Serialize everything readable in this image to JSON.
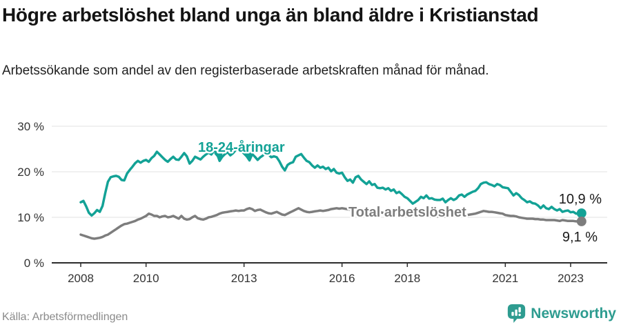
{
  "footer": {
    "source": "Källa: Arbetsförmedlingen",
    "brand": "Newsworthy"
  },
  "colors": {
    "youth_line": "#13a296",
    "total_line": "#7d7d7d",
    "brand_teal": "#2e9c90",
    "gridline": "#e0e0e0",
    "axis": "#2b2b2b"
  },
  "chart_data": {
    "type": "line",
    "title": "Högre arbetslöshet bland unga än bland äldre i Kristianstad",
    "subtitle": "Arbetssökande som andel av den registerbaserade arbetskraften månad för månad.",
    "frequency": "monthly",
    "x_start": "2008-01",
    "x_end": "2023-05",
    "x_ticks": [
      2008,
      2010,
      2013,
      2016,
      2018,
      2021,
      2023
    ],
    "y_ticks": [
      {
        "value": 0,
        "label": "0 %"
      },
      {
        "value": 10,
        "label": "10 %"
      },
      {
        "value": 20,
        "label": "20 %"
      },
      {
        "value": 30,
        "label": "30 %"
      }
    ],
    "ylim": [
      0,
      30
    ],
    "grid": true,
    "legend_position": "inline-labels",
    "series": [
      {
        "name": "18-24-åringar",
        "color": "#13a296",
        "end_label": "10,9 %",
        "end_value": 10.9,
        "values": [
          13.3,
          13.6,
          12.4,
          11.0,
          10.4,
          10.9,
          11.6,
          11.2,
          12.5,
          15.3,
          17.8,
          18.8,
          19.0,
          19.1,
          18.9,
          18.2,
          18.1,
          19.6,
          20.4,
          21.1,
          21.9,
          22.4,
          22.0,
          22.4,
          22.6,
          22.2,
          23.0,
          23.5,
          24.4,
          23.8,
          23.2,
          22.6,
          22.2,
          22.8,
          23.3,
          22.7,
          22.6,
          23.3,
          24.1,
          23.4,
          21.8,
          22.4,
          23.3,
          23.0,
          22.7,
          23.3,
          23.8,
          24.2,
          23.8,
          24.6,
          24.1,
          22.4,
          23.3,
          23.9,
          24.3,
          23.6,
          24.1,
          24.8,
          25.2,
          24.6,
          24.0,
          23.4,
          22.5,
          23.9,
          23.3,
          22.6,
          23.2,
          23.6,
          24.2,
          23.8,
          23.2,
          23.4,
          23.2,
          22.3,
          21.1,
          20.3,
          21.5,
          21.9,
          22.1,
          23.3,
          23.6,
          23.9,
          23.1,
          22.4,
          22.1,
          21.4,
          20.9,
          21.4,
          20.9,
          21.1,
          20.6,
          20.9,
          20.1,
          20.6,
          19.8,
          19.6,
          19.8,
          18.8,
          18.0,
          18.3,
          17.6,
          18.8,
          19.1,
          18.3,
          17.8,
          17.3,
          17.9,
          17.1,
          17.3,
          16.5,
          16.4,
          16.5,
          16.1,
          16.4,
          15.8,
          16.1,
          15.3,
          15.6,
          15.1,
          14.5,
          14.2,
          13.6,
          13.0,
          13.4,
          13.8,
          14.5,
          14.2,
          14.8,
          14.1,
          14.2,
          13.9,
          13.8,
          13.8,
          14.1,
          13.3,
          13.8,
          14.2,
          13.8,
          14.1,
          14.8,
          15.0,
          14.5,
          15.0,
          15.3,
          15.6,
          15.8,
          16.4,
          17.3,
          17.6,
          17.7,
          17.3,
          17.1,
          16.8,
          17.3,
          17.1,
          16.6,
          16.5,
          16.4,
          15.6,
          14.8,
          15.3,
          14.9,
          14.2,
          13.8,
          13.3,
          13.5,
          13.1,
          13.0,
          12.6,
          12.0,
          12.6,
          12.0,
          11.8,
          12.3,
          11.8,
          11.5,
          11.8,
          11.2,
          11.4,
          11.5,
          11.1,
          11.2,
          10.8,
          10.9,
          10.9
        ]
      },
      {
        "name": "Total arbetslöshet",
        "color": "#7d7d7d",
        "end_label": "9,1 %",
        "end_value": 9.1,
        "values": [
          6.2,
          6.0,
          5.8,
          5.6,
          5.4,
          5.3,
          5.4,
          5.5,
          5.7,
          6.0,
          6.2,
          6.6,
          7.0,
          7.4,
          7.8,
          8.2,
          8.5,
          8.6,
          8.8,
          9.0,
          9.2,
          9.5,
          9.7,
          10.0,
          10.3,
          10.8,
          10.6,
          10.3,
          10.3,
          10.0,
          10.2,
          10.3,
          10.0,
          10.1,
          10.3,
          10.0,
          9.7,
          10.3,
          9.7,
          9.5,
          9.6,
          10.0,
          10.3,
          9.8,
          9.6,
          9.5,
          9.7,
          10.0,
          10.1,
          10.3,
          10.5,
          10.8,
          11.0,
          11.1,
          11.2,
          11.3,
          11.4,
          11.5,
          11.4,
          11.5,
          11.5,
          11.8,
          12.0,
          11.8,
          11.4,
          11.6,
          11.7,
          11.4,
          11.1,
          10.9,
          10.8,
          11.0,
          11.2,
          10.9,
          10.6,
          10.5,
          10.8,
          11.1,
          11.4,
          11.7,
          12.0,
          11.7,
          11.4,
          11.2,
          11.1,
          11.2,
          11.3,
          11.4,
          11.5,
          11.4,
          11.5,
          11.6,
          11.8,
          11.9,
          12.0,
          11.9,
          12.0,
          11.9,
          11.8,
          11.7,
          11.6,
          11.6,
          11.5,
          11.5,
          11.4,
          11.3,
          11.3,
          11.2,
          11.2,
          11.1,
          11.1,
          11.0,
          11.0,
          10.9,
          10.9,
          10.8,
          10.8,
          10.7,
          10.7,
          10.6,
          10.6,
          10.5,
          10.5,
          10.4,
          10.4,
          10.3,
          10.3,
          10.3,
          10.2,
          10.2,
          10.2,
          10.2,
          10.2,
          10.2,
          10.1,
          10.1,
          10.2,
          10.2,
          10.3,
          10.3,
          10.4,
          10.4,
          10.5,
          10.6,
          10.7,
          10.8,
          11.0,
          11.2,
          11.4,
          11.3,
          11.2,
          11.2,
          11.1,
          11.0,
          10.9,
          10.8,
          10.5,
          10.4,
          10.3,
          10.3,
          10.2,
          10.0,
          9.9,
          9.8,
          9.7,
          9.7,
          9.7,
          9.6,
          9.6,
          9.5,
          9.5,
          9.4,
          9.4,
          9.4,
          9.4,
          9.3,
          9.2,
          9.4,
          9.3,
          9.2,
          9.2,
          9.2,
          9.1,
          9.1,
          9.1
        ]
      }
    ]
  }
}
